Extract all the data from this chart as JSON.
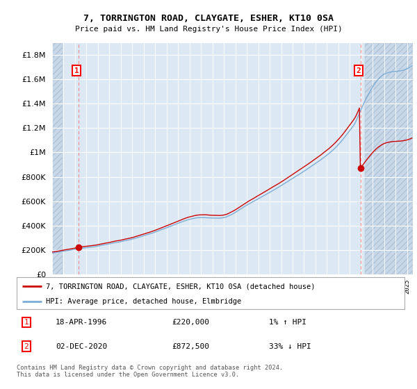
{
  "title": "7, TORRINGTON ROAD, CLAYGATE, ESHER, KT10 0SA",
  "subtitle": "Price paid vs. HM Land Registry's House Price Index (HPI)",
  "ylabel_values": [
    0,
    200000,
    400000,
    600000,
    800000,
    1000000,
    1200000,
    1400000,
    1600000,
    1800000
  ],
  "ylabel_labels": [
    "£0",
    "£200K",
    "£400K",
    "£600K",
    "£800K",
    "£1M",
    "£1.2M",
    "£1.4M",
    "£1.6M",
    "£1.8M"
  ],
  "ylim": [
    0,
    1900000
  ],
  "xlim_left": 1994.0,
  "xlim_right": 2025.5,
  "sale1_year": 1996.29,
  "sale1_price": 220000,
  "sale1_label": "1",
  "sale2_year": 2020.92,
  "sale2_price": 872500,
  "sale2_label": "2",
  "hpi_color": "#7dadd4",
  "price_color": "#cc0000",
  "marker_color": "#cc0000",
  "vline_color": "#ff8888",
  "legend_label1": "7, TORRINGTON ROAD, CLAYGATE, ESHER, KT10 0SA (detached house)",
  "legend_label2": "HPI: Average price, detached house, Elmbridge",
  "annotation1_date": "18-APR-1996",
  "annotation1_price": "£220,000",
  "annotation1_hpi": "1% ↑ HPI",
  "annotation2_date": "02-DEC-2020",
  "annotation2_price": "£872,500",
  "annotation2_hpi": "33% ↓ HPI",
  "footer": "Contains HM Land Registry data © Crown copyright and database right 2024.\nThis data is licensed under the Open Government Licence v3.0.",
  "plot_bg": "#dce9f5",
  "hatch_bg": "#c8d8e8",
  "fig_bg": "#ffffff"
}
